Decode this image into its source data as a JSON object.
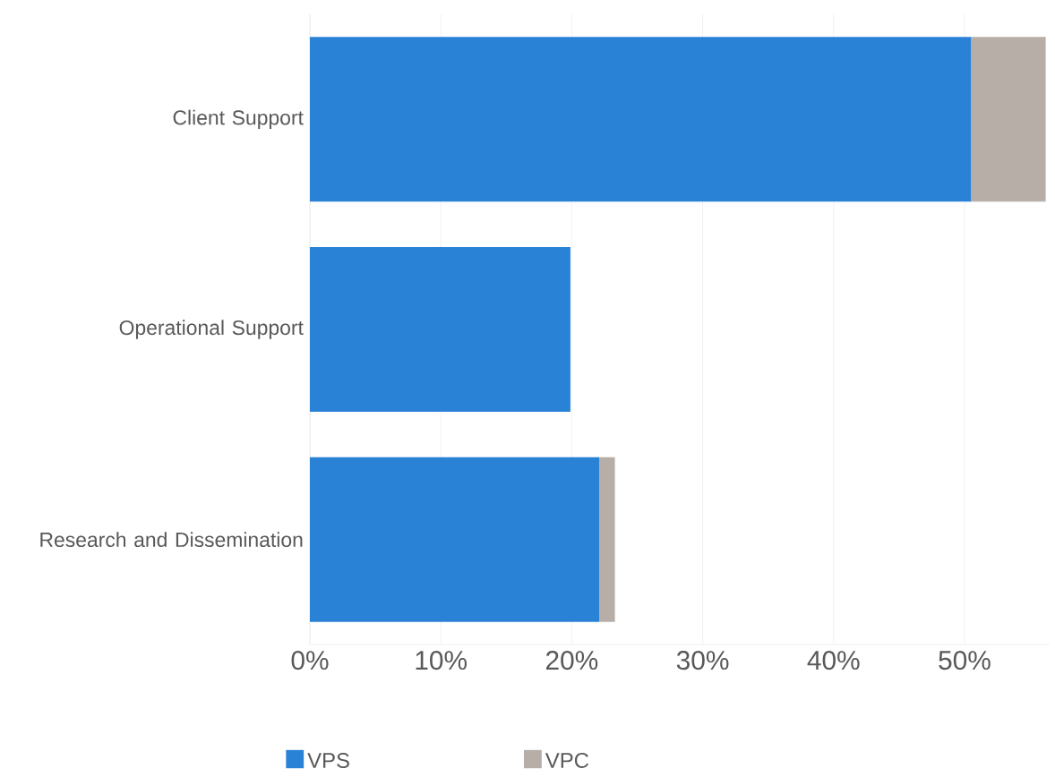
{
  "chart_data": {
    "type": "bar",
    "orientation": "horizontal",
    "stacked": true,
    "categories": [
      "Client Support",
      "Operational Support",
      "Research and Dissemination"
    ],
    "series": [
      {
        "name": "VPS",
        "color": "#2a82d6",
        "values": [
          50.5,
          19.9,
          22.1
        ]
      },
      {
        "name": "VPC",
        "color": "#b8aea8",
        "values": [
          5.7,
          0,
          1.2
        ]
      }
    ],
    "xlim": [
      0,
      56.5
    ],
    "xticks": [
      {
        "value": 0,
        "label": "0%"
      },
      {
        "value": 10,
        "label": "10%"
      },
      {
        "value": 20,
        "label": "20%"
      },
      {
        "value": 30,
        "label": "30%"
      },
      {
        "value": 40,
        "label": "40%"
      },
      {
        "value": 50,
        "label": "50%"
      }
    ],
    "grid": "x",
    "legend": "bottom"
  }
}
